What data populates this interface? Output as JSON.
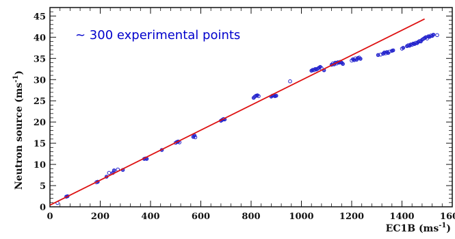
{
  "chart_data": {
    "type": "scatter",
    "annotation": "~ 300 experimental points",
    "xlabel": "EC1B",
    "xlabel_unit": "(ms",
    "xlabel_sup": "-1",
    "xlabel_close": ")",
    "ylabel": "Neutron source",
    "ylabel_unit": "(ms",
    "ylabel_sup": "-1",
    "ylabel_close": ")",
    "xlim": [
      0,
      1600
    ],
    "ylim": [
      0,
      47
    ],
    "x_ticks": [
      0,
      200,
      400,
      600,
      800,
      1000,
      1200,
      1400,
      1600
    ],
    "x_tick_labels": [
      "0",
      "200",
      "400",
      "600",
      "800",
      "1000",
      "1200",
      "1400",
      "1600"
    ],
    "y_ticks": [
      0,
      5,
      10,
      15,
      20,
      25,
      30,
      35,
      40,
      45
    ],
    "y_tick_labels": [
      "0",
      "5",
      "10",
      "15",
      "20",
      "25",
      "30",
      "35",
      "40",
      "45"
    ],
    "grid": false,
    "colors": {
      "points": "#2222cc",
      "fit_line": "#dd1111",
      "annotation": "#0000cc"
    },
    "fit_line": {
      "x": [
        0,
        1490
      ],
      "y": [
        0.4,
        44.3
      ]
    },
    "points": [
      [
        30,
        0.9
      ],
      [
        65,
        2.4
      ],
      [
        70,
        2.5
      ],
      [
        185,
        5.8
      ],
      [
        190,
        5.9
      ],
      [
        225,
        7.1
      ],
      [
        235,
        8.0
      ],
      [
        250,
        8.0
      ],
      [
        255,
        8.6
      ],
      [
        270,
        8.8
      ],
      [
        290,
        8.7
      ],
      [
        375,
        11.3
      ],
      [
        380,
        11.4
      ],
      [
        385,
        11.3
      ],
      [
        445,
        13.4
      ],
      [
        500,
        15.1
      ],
      [
        505,
        15.3
      ],
      [
        510,
        15.4
      ],
      [
        515,
        15.2
      ],
      [
        570,
        16.5
      ],
      [
        575,
        16.8
      ],
      [
        578,
        16.4
      ],
      [
        680,
        20.3
      ],
      [
        685,
        20.5
      ],
      [
        690,
        20.7
      ],
      [
        695,
        20.6
      ],
      [
        810,
        25.7
      ],
      [
        815,
        26.0
      ],
      [
        820,
        26.2
      ],
      [
        825,
        26.3
      ],
      [
        830,
        26.1
      ],
      [
        880,
        26.0
      ],
      [
        885,
        26.2
      ],
      [
        890,
        26.3
      ],
      [
        895,
        26.1
      ],
      [
        900,
        26.2
      ],
      [
        955,
        29.6
      ],
      [
        1040,
        32.1
      ],
      [
        1045,
        32.3
      ],
      [
        1050,
        32.2
      ],
      [
        1055,
        32.5
      ],
      [
        1060,
        32.4
      ],
      [
        1065,
        32.6
      ],
      [
        1070,
        32.8
      ],
      [
        1075,
        33.0
      ],
      [
        1080,
        32.7
      ],
      [
        1090,
        32.2
      ],
      [
        1120,
        33.5
      ],
      [
        1125,
        33.8
      ],
      [
        1130,
        33.6
      ],
      [
        1135,
        34.0
      ],
      [
        1140,
        33.8
      ],
      [
        1145,
        34.1
      ],
      [
        1150,
        34.0
      ],
      [
        1155,
        34.2
      ],
      [
        1160,
        34.0
      ],
      [
        1165,
        33.7
      ],
      [
        1200,
        34.5
      ],
      [
        1205,
        34.8
      ],
      [
        1210,
        34.6
      ],
      [
        1215,
        35.0
      ],
      [
        1220,
        34.7
      ],
      [
        1225,
        35.1
      ],
      [
        1230,
        35.2
      ],
      [
        1235,
        34.9
      ],
      [
        1305,
        35.8
      ],
      [
        1315,
        35.9
      ],
      [
        1325,
        36.1
      ],
      [
        1330,
        36.4
      ],
      [
        1335,
        36.2
      ],
      [
        1340,
        36.5
      ],
      [
        1345,
        36.3
      ],
      [
        1350,
        36.6
      ],
      [
        1360,
        36.8
      ],
      [
        1365,
        36.9
      ],
      [
        1400,
        37.3
      ],
      [
        1405,
        37.5
      ],
      [
        1420,
        37.9
      ],
      [
        1425,
        38.1
      ],
      [
        1430,
        38.0
      ],
      [
        1435,
        38.3
      ],
      [
        1440,
        38.2
      ],
      [
        1445,
        38.5
      ],
      [
        1450,
        38.4
      ],
      [
        1455,
        38.7
      ],
      [
        1460,
        38.6
      ],
      [
        1465,
        38.9
      ],
      [
        1470,
        39.1
      ],
      [
        1475,
        39.0
      ],
      [
        1480,
        39.4
      ],
      [
        1485,
        39.6
      ],
      [
        1490,
        39.8
      ],
      [
        1495,
        40.0
      ],
      [
        1500,
        39.7
      ],
      [
        1505,
        40.2
      ],
      [
        1510,
        40.1
      ],
      [
        1515,
        40.4
      ],
      [
        1520,
        40.3
      ],
      [
        1525,
        40.6
      ],
      [
        1540,
        40.5
      ]
    ]
  }
}
